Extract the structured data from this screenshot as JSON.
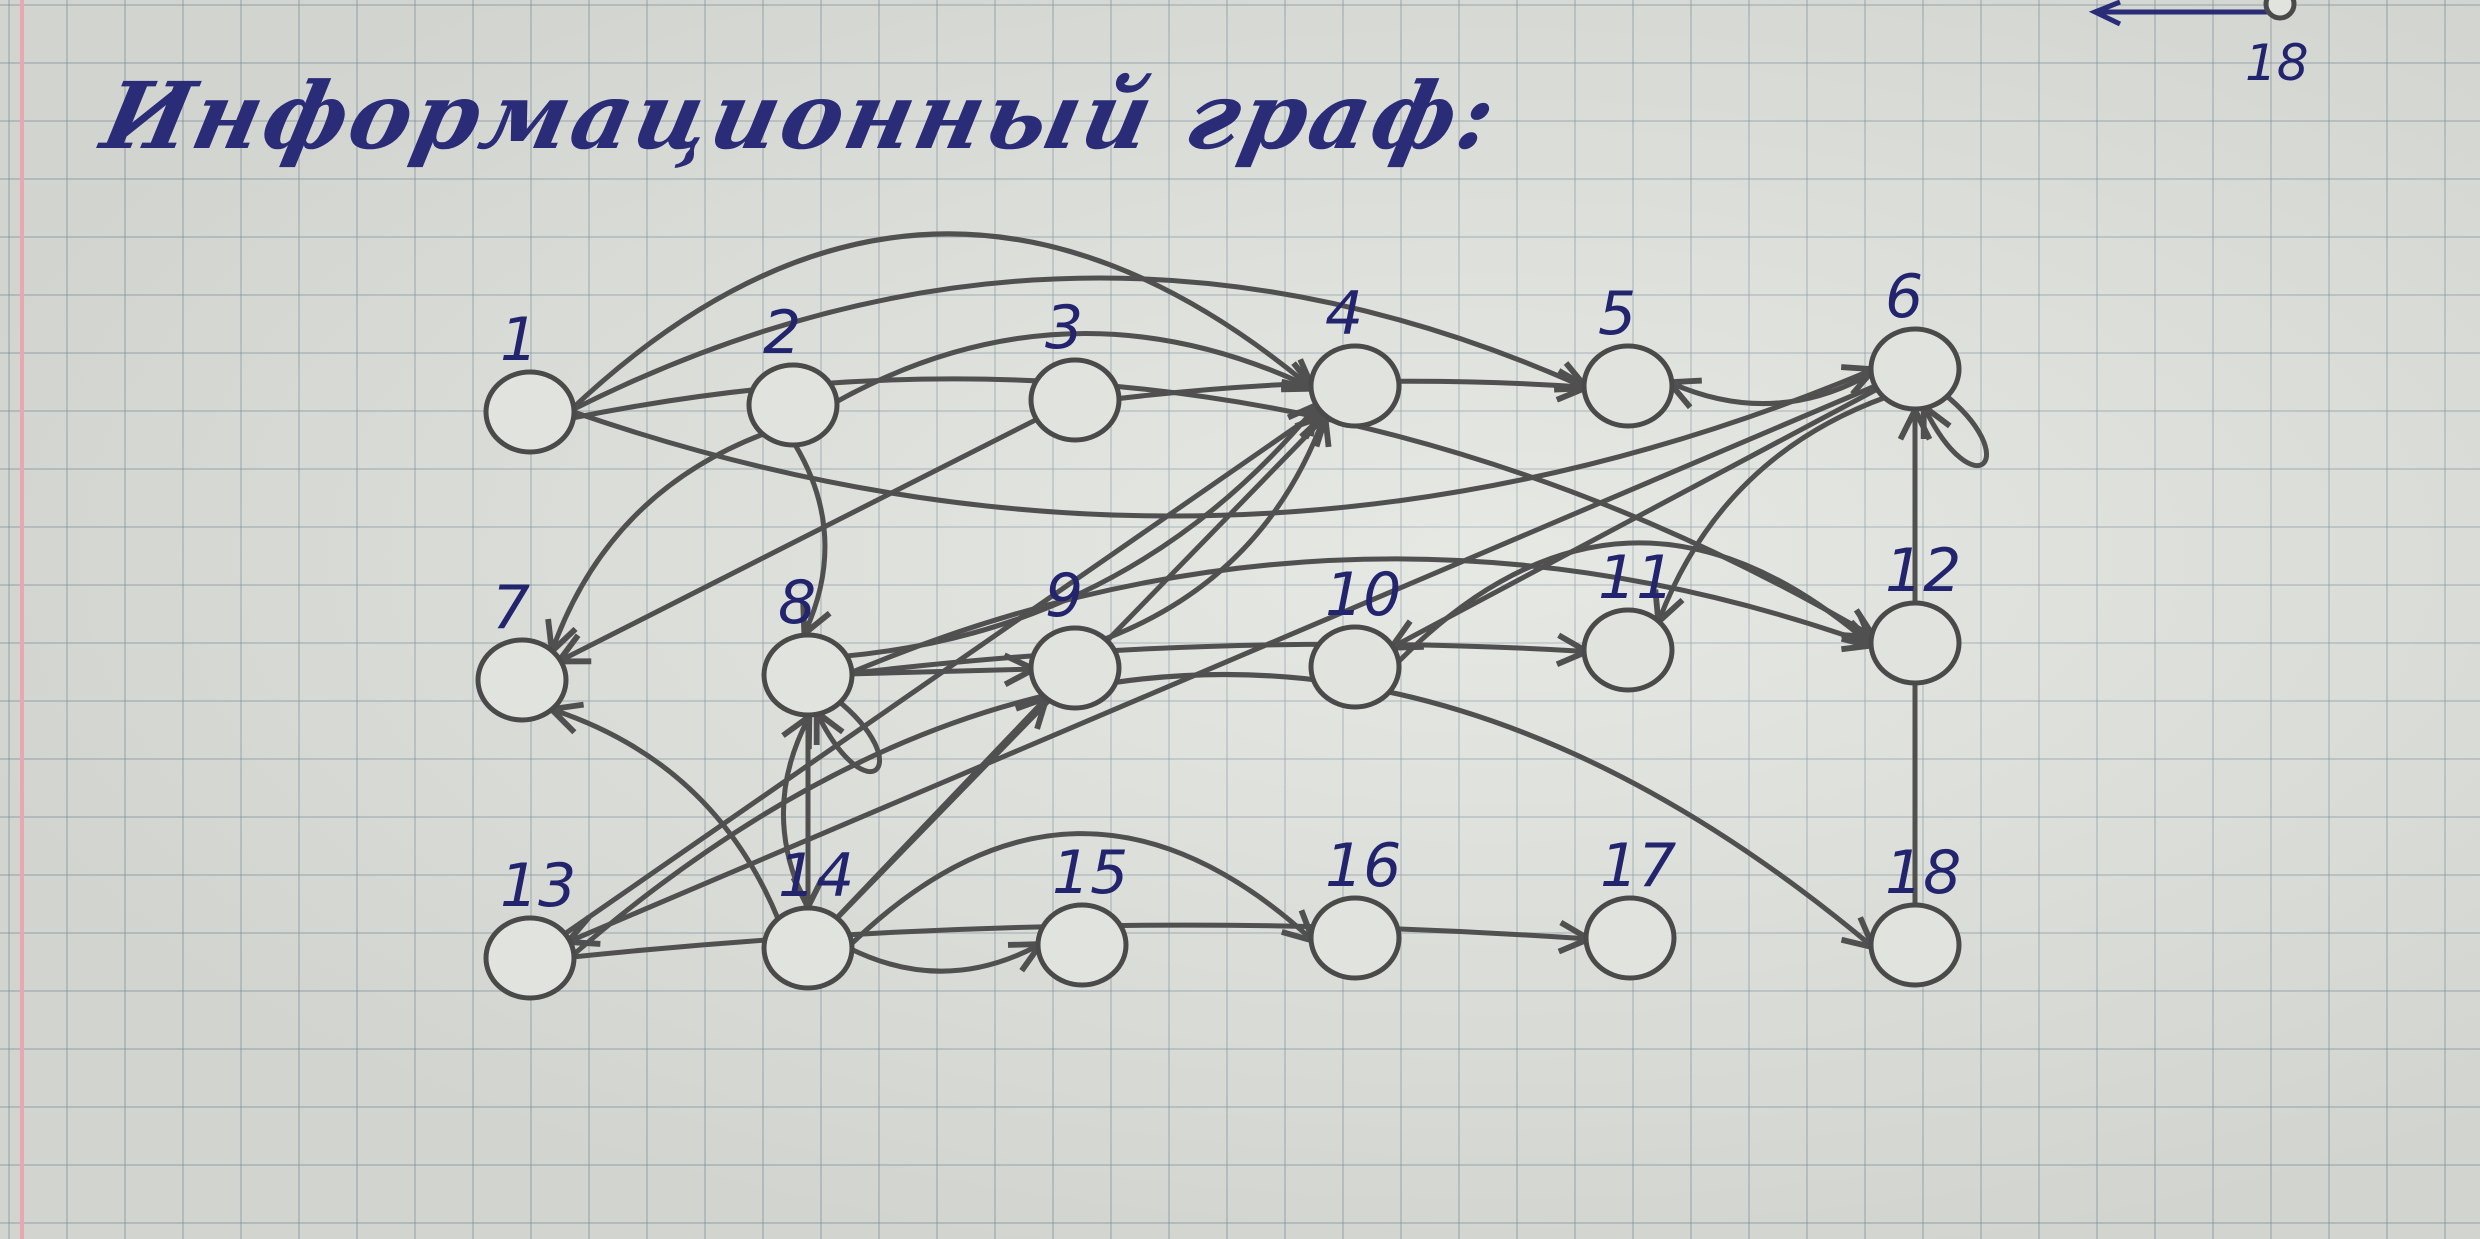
{
  "title": "Информационный граф:",
  "corner_label": "18",
  "nodes": [
    {
      "id": "1",
      "label": "1"
    },
    {
      "id": "2",
      "label": "2"
    },
    {
      "id": "3",
      "label": "3"
    },
    {
      "id": "4",
      "label": "4"
    },
    {
      "id": "5",
      "label": "5"
    },
    {
      "id": "6",
      "label": "6"
    },
    {
      "id": "7",
      "label": "7"
    },
    {
      "id": "8",
      "label": "8"
    },
    {
      "id": "9",
      "label": "9"
    },
    {
      "id": "10",
      "label": "10"
    },
    {
      "id": "11",
      "label": "11"
    },
    {
      "id": "12",
      "label": "12"
    },
    {
      "id": "13",
      "label": "13"
    },
    {
      "id": "14",
      "label": "14"
    },
    {
      "id": "15",
      "label": "15"
    },
    {
      "id": "16",
      "label": "16"
    },
    {
      "id": "17",
      "label": "17"
    },
    {
      "id": "18",
      "label": "18"
    }
  ],
  "edges": [
    [
      "1",
      "4"
    ],
    [
      "1",
      "5"
    ],
    [
      "1",
      "6"
    ],
    [
      "1",
      "12"
    ],
    [
      "2",
      "4"
    ],
    [
      "2",
      "7"
    ],
    [
      "2",
      "8"
    ],
    [
      "3",
      "7"
    ],
    [
      "3",
      "5"
    ],
    [
      "6",
      "5"
    ],
    [
      "6",
      "10"
    ],
    [
      "6",
      "11"
    ],
    [
      "6",
      "6"
    ],
    [
      "6",
      "13"
    ],
    [
      "8",
      "4"
    ],
    [
      "8",
      "8"
    ],
    [
      "8",
      "9"
    ],
    [
      "8",
      "11"
    ],
    [
      "8",
      "12"
    ],
    [
      "8",
      "14"
    ],
    [
      "9",
      "4"
    ],
    [
      "10",
      "12"
    ],
    [
      "13",
      "4"
    ],
    [
      "13",
      "17"
    ],
    [
      "13",
      "18"
    ],
    [
      "14",
      "4"
    ],
    [
      "14",
      "7"
    ],
    [
      "14",
      "8"
    ],
    [
      "14",
      "9"
    ],
    [
      "14",
      "15"
    ],
    [
      "14",
      "16"
    ],
    [
      "18",
      "6"
    ]
  ],
  "colors": {
    "ink": "#2b2c78",
    "pencil": "#505050",
    "paper": "#dfe2dc"
  }
}
